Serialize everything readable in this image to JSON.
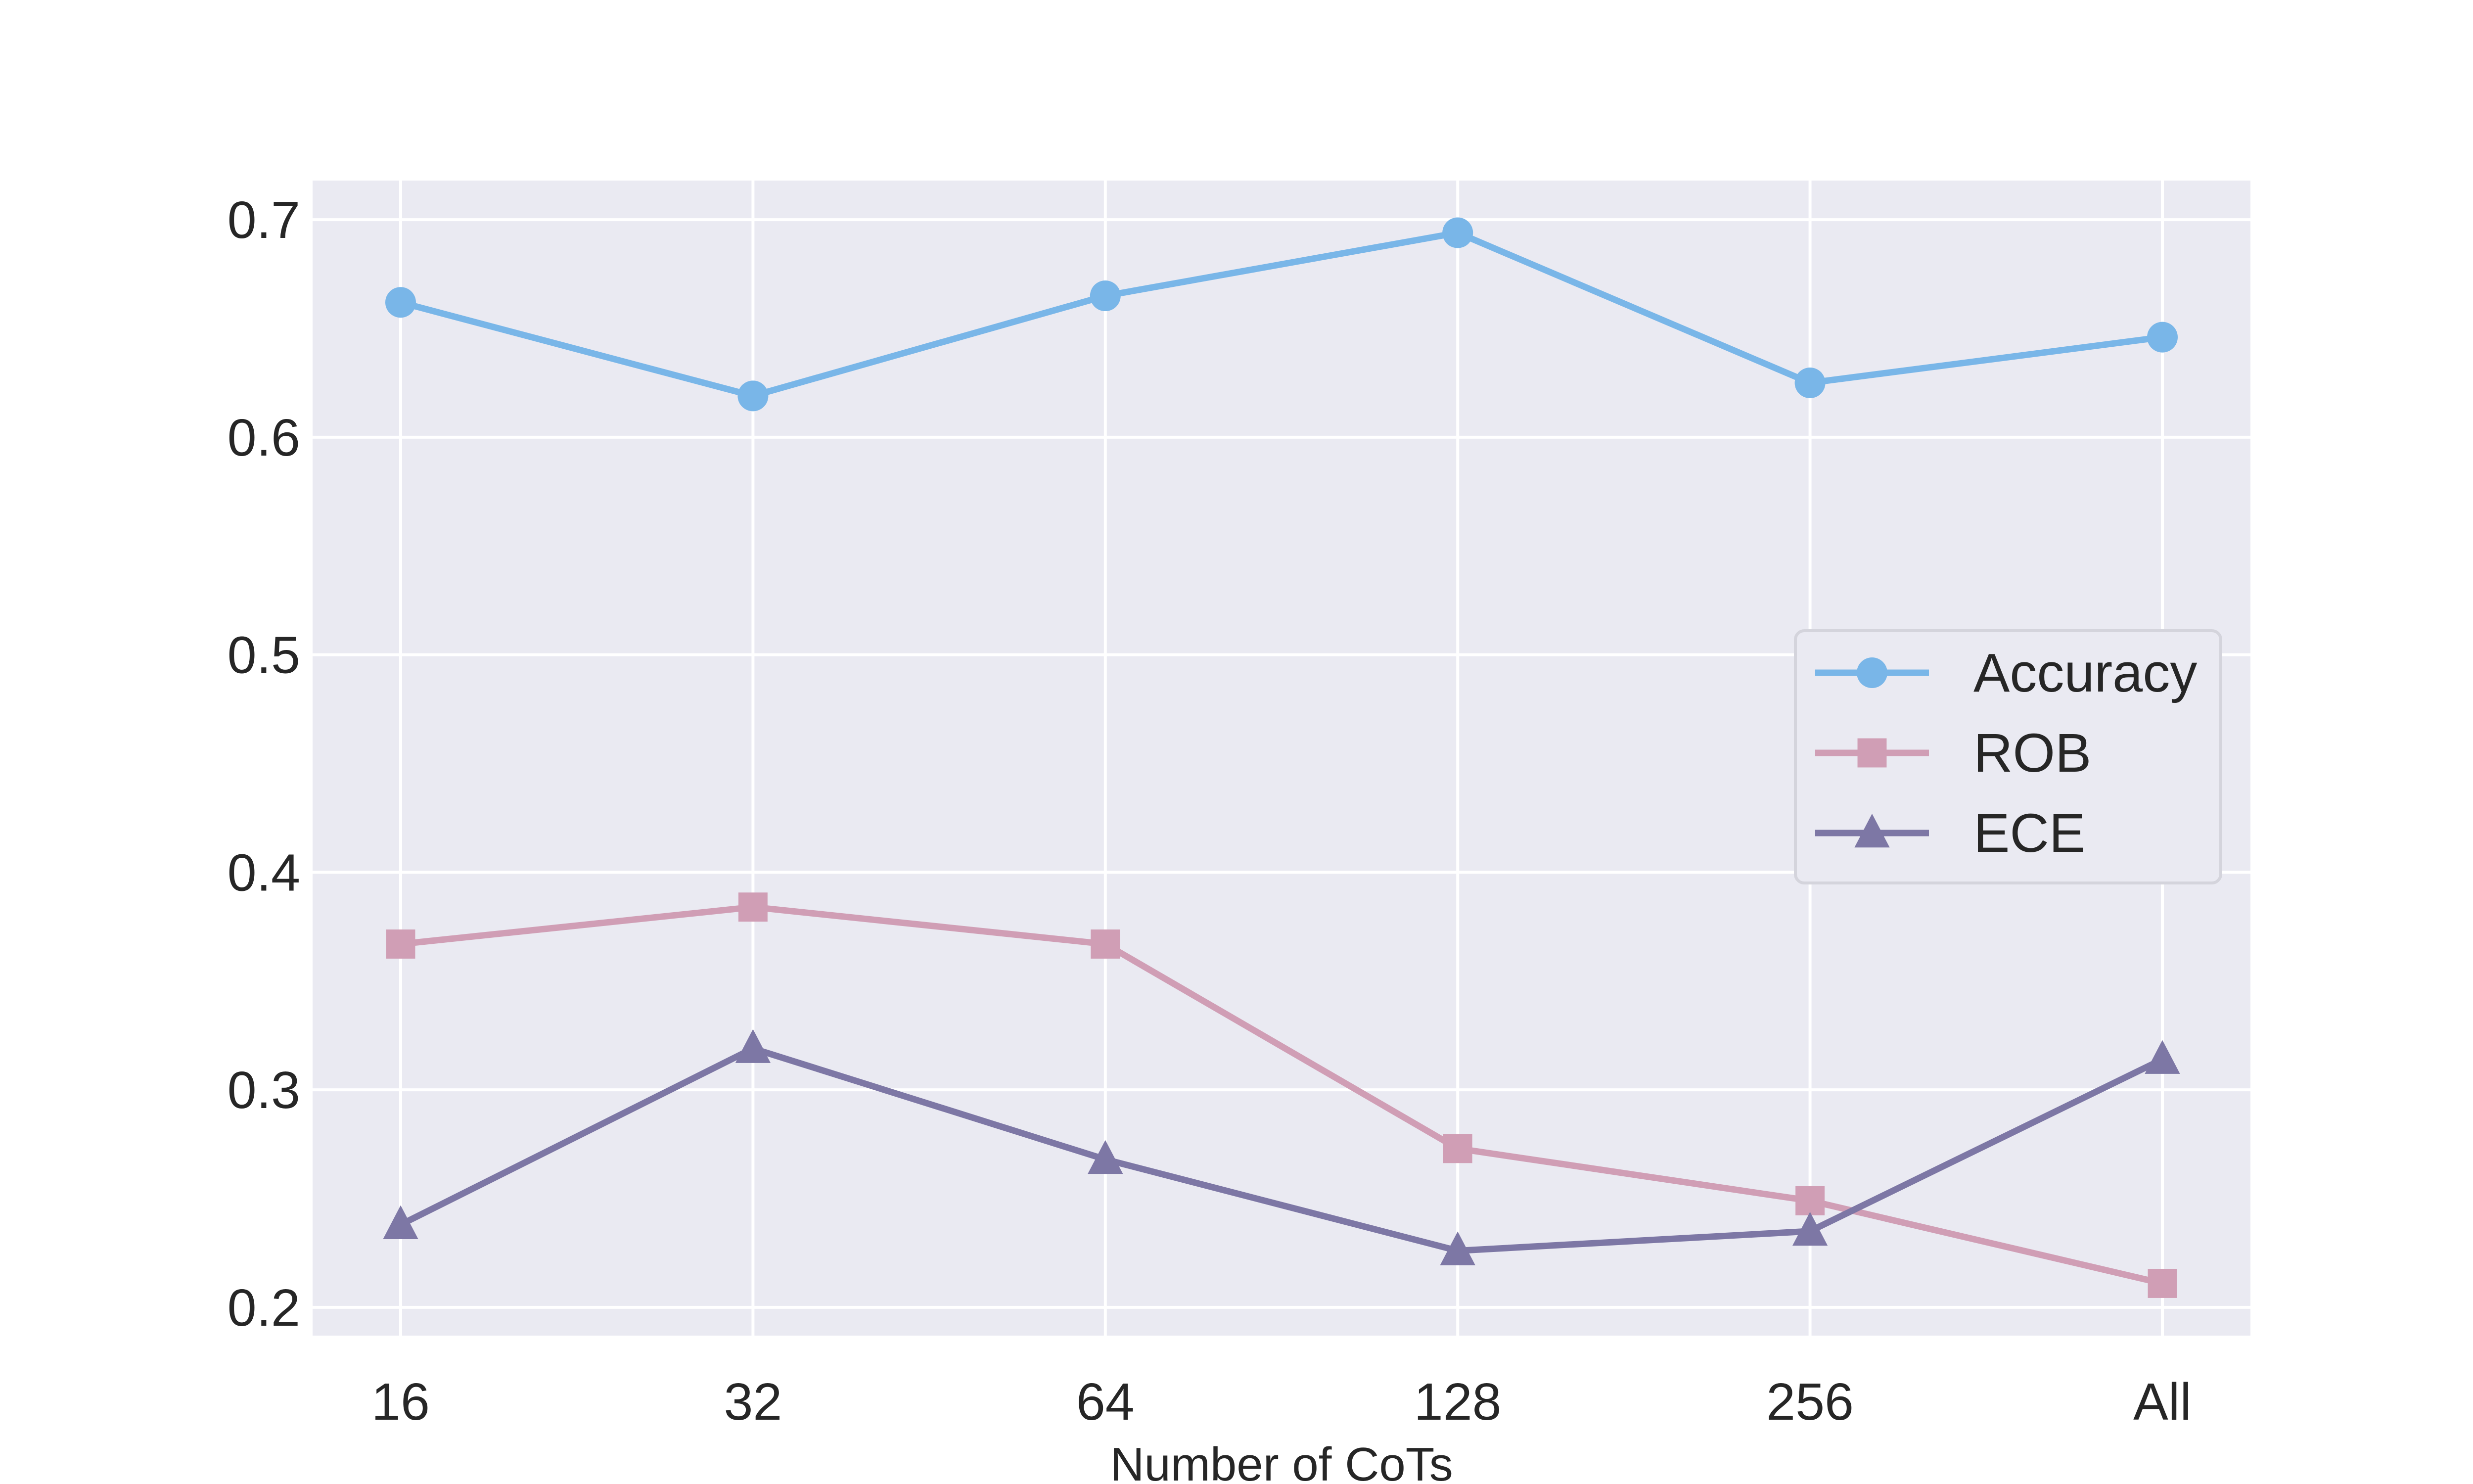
{
  "chart_data": {
    "type": "line",
    "categories": [
      "16",
      "32",
      "64",
      "128",
      "256",
      "All"
    ],
    "xlabel": "Number of CoTs",
    "ylabel": "",
    "ylim": [
      0.187,
      0.718
    ],
    "yticks": [
      0.2,
      0.3,
      0.4,
      0.5,
      0.6,
      0.7
    ],
    "ytick_labels": [
      "0.2",
      "0.3",
      "0.4",
      "0.5",
      "0.6",
      "0.7"
    ],
    "grid": true,
    "legend_position": "center-right",
    "background_color": "#eaeaf2",
    "series": [
      {
        "name": "Accuracy",
        "color": "#79b6e8",
        "marker": "circle",
        "values": [
          0.662,
          0.619,
          0.665,
          0.694,
          0.625,
          0.646
        ]
      },
      {
        "name": "ROB",
        "color": "#d09eb5",
        "marker": "square",
        "values": [
          0.367,
          0.384,
          0.367,
          0.273,
          0.249,
          0.211
        ]
      },
      {
        "name": "ECE",
        "color": "#7d77a5",
        "marker": "triangle",
        "values": [
          0.238,
          0.319,
          0.268,
          0.226,
          0.235,
          0.314
        ]
      }
    ]
  }
}
